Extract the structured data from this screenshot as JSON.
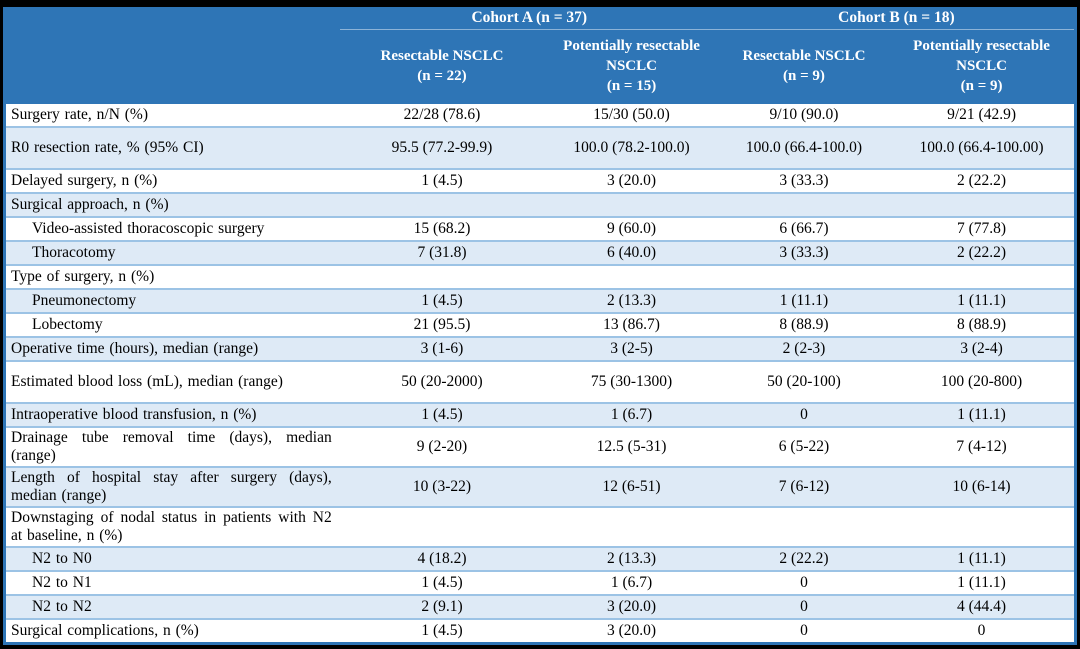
{
  "colors": {
    "header_blue": "#2E75B6",
    "row_border_blue": "#9CC3E5",
    "stripe_blue": "#DEEAF6",
    "frame_black": "#000000",
    "header_text": "#FFFFFF",
    "body_text": "#000000"
  },
  "header": {
    "cohorts": [
      {
        "label": "Cohort A (n = 37)"
      },
      {
        "label": "Cohort B (n = 18)"
      }
    ],
    "columns": [
      {
        "title": "Resectable NSCLC",
        "n": "(n = 22)"
      },
      {
        "title": "Potentially resectable NSCLC",
        "n": "(n = 15)"
      },
      {
        "title": "Resectable NSCLC",
        "n": "(n = 9)"
      },
      {
        "title": "Potentially resectable NSCLC",
        "n": "(n = 9)"
      }
    ]
  },
  "rows": [
    {
      "label": "Surgery rate, n/N (%)",
      "indent": false,
      "section": false,
      "values": [
        "22/28 (78.6)",
        "15/30 (50.0)",
        "9/10 (90.0)",
        "9/21 (42.9)"
      ]
    },
    {
      "label": "R0 resection rate, % (95% CI)",
      "indent": false,
      "section": false,
      "values": [
        "95.5 (77.2-99.9)",
        "100.0 (78.2-100.0)",
        "100.0 (66.4-100.0)",
        "100.0 (66.4-100.00)"
      ]
    },
    {
      "label": "Delayed surgery, n (%)",
      "indent": false,
      "section": false,
      "values": [
        "1 (4.5)",
        "3 (20.0)",
        "3 (33.3)",
        "2 (22.2)"
      ]
    },
    {
      "label": "Surgical approach, n (%)",
      "indent": false,
      "section": true,
      "values": [
        "",
        "",
        "",
        ""
      ]
    },
    {
      "label": "Video-assisted thoracoscopic surgery",
      "indent": true,
      "section": false,
      "values": [
        "15 (68.2)",
        "9 (60.0)",
        "6 (66.7)",
        "7 (77.8)"
      ]
    },
    {
      "label": "Thoracotomy",
      "indent": true,
      "section": false,
      "values": [
        "7 (31.8)",
        "6 (40.0)",
        "3 (33.3)",
        "2 (22.2)"
      ]
    },
    {
      "label": "Type of surgery, n (%)",
      "indent": false,
      "section": true,
      "values": [
        "",
        "",
        "",
        ""
      ]
    },
    {
      "label": "Pneumonectomy",
      "indent": true,
      "section": false,
      "values": [
        "1 (4.5)",
        "2 (13.3)",
        "1 (11.1)",
        "1 (11.1)"
      ]
    },
    {
      "label": "Lobectomy",
      "indent": true,
      "section": false,
      "values": [
        "21 (95.5)",
        "13 (86.7)",
        "8 (88.9)",
        "8 (88.9)"
      ]
    },
    {
      "label": "Operative time (hours), median (range)",
      "indent": false,
      "section": false,
      "values": [
        "3 (1-6)",
        "3 (2-5)",
        "2 (2-3)",
        "3 (2-4)"
      ]
    },
    {
      "label": "Estimated blood loss (mL), median (range)",
      "indent": false,
      "section": false,
      "values": [
        "50 (20-2000)",
        "75 (30-1300)",
        "50 (20-100)",
        "100 (20-800)"
      ]
    },
    {
      "label": "Intraoperative blood transfusion, n (%)",
      "indent": false,
      "section": false,
      "values": [
        "1 (4.5)",
        "1 (6.7)",
        "0",
        "1 (11.1)"
      ]
    },
    {
      "label": "Drainage tube removal time (days), median (range)",
      "indent": false,
      "section": false,
      "values": [
        "9 (2-20)",
        "12.5 (5-31)",
        "6 (5-22)",
        "7 (4-12)"
      ]
    },
    {
      "label": "Length of hospital stay after surgery (days), median (range)",
      "indent": false,
      "section": false,
      "values": [
        "10 (3-22)",
        "12 (6-51)",
        "7 (6-12)",
        "10 (6-14)"
      ]
    },
    {
      "label": "Downstaging of nodal status in patients with N2 at baseline, n (%)",
      "indent": false,
      "section": true,
      "values": [
        "",
        "",
        "",
        ""
      ]
    },
    {
      "label": "N2 to N0",
      "indent": true,
      "section": false,
      "values": [
        "4 (18.2)",
        "2 (13.3)",
        "2 (22.2)",
        "1 (11.1)"
      ]
    },
    {
      "label": "N2 to N1",
      "indent": true,
      "section": false,
      "values": [
        "1 (4.5)",
        "1 (6.7)",
        "0",
        "1 (11.1)"
      ]
    },
    {
      "label": "N2 to N2",
      "indent": true,
      "section": false,
      "values": [
        "2 (9.1)",
        "3 (20.0)",
        "0",
        "4 (44.4)"
      ]
    },
    {
      "label": "Surgical complications, n (%)",
      "indent": false,
      "section": false,
      "values": [
        "1 (4.5)",
        "3 (20.0)",
        "0",
        "0"
      ]
    }
  ]
}
